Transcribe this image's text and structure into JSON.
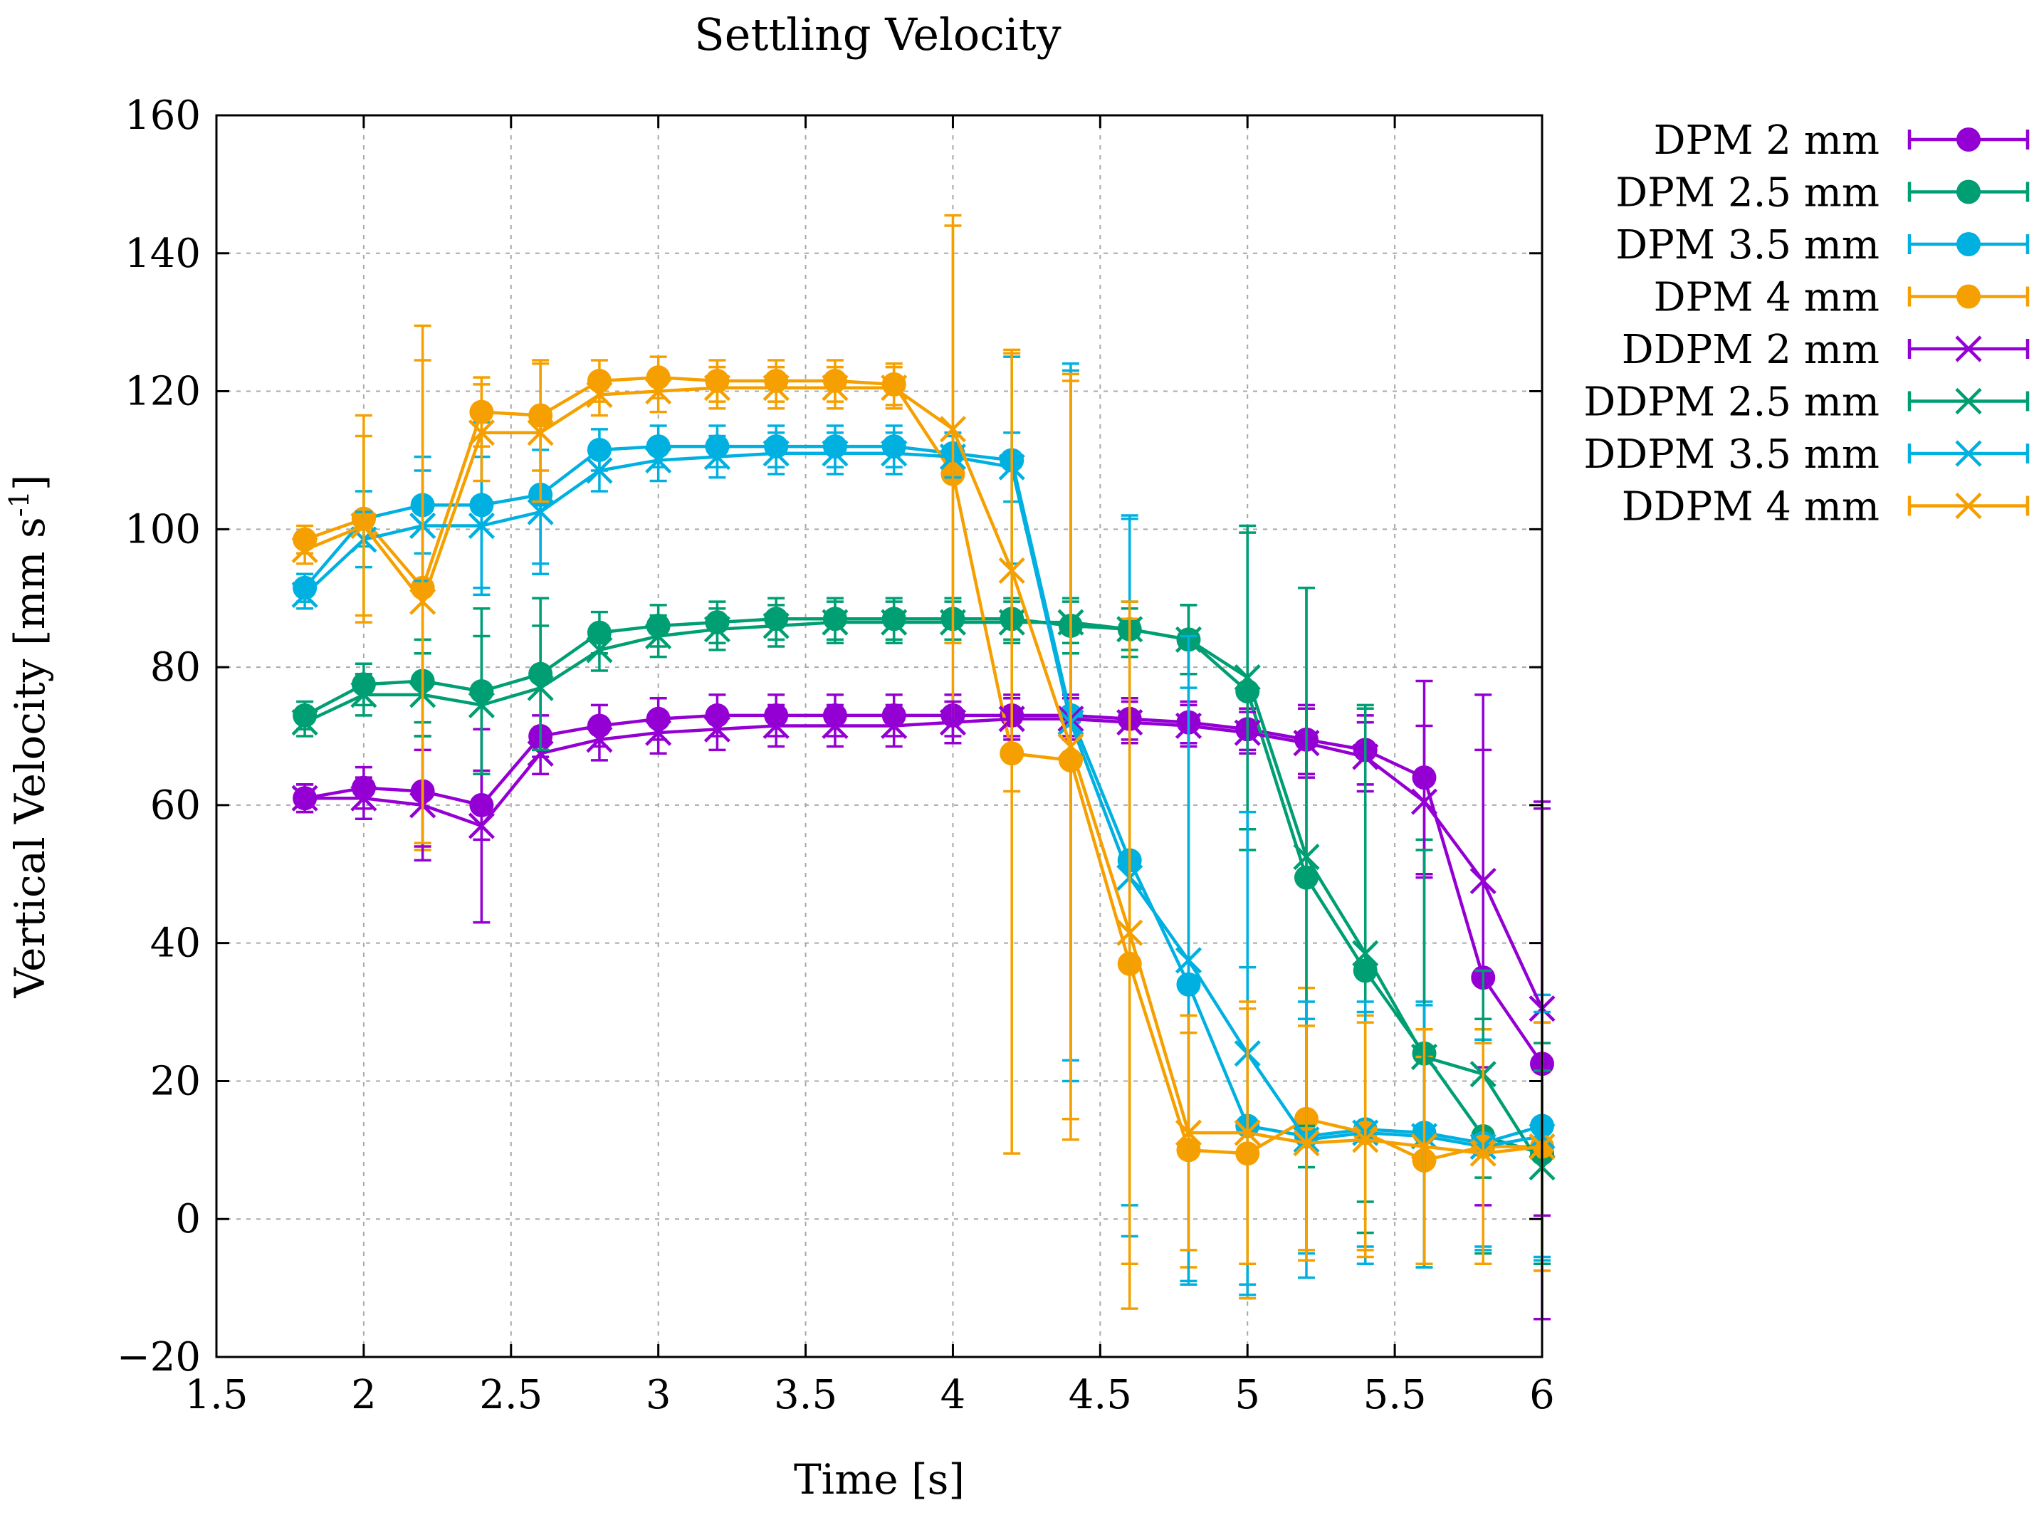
{
  "chart_data": {
    "type": "line",
    "title": "Settling Velocity",
    "xlabel": "Time [s]",
    "ylabel": "Vertical Velocity [mm s",
    "ylabel_sup": "-1",
    "ylabel_end": "]",
    "xlim": [
      1.5,
      6
    ],
    "ylim": [
      -20,
      160
    ],
    "xticks": [
      "1.5",
      "2",
      "2.5",
      "3",
      "3.5",
      "4",
      "4.5",
      "5",
      "5.5",
      "6"
    ],
    "xtick_values": [
      1.5,
      2,
      2.5,
      3,
      3.5,
      4,
      4.5,
      5,
      5.5,
      6
    ],
    "yticks": [
      "−20",
      "0",
      "20",
      "40",
      "60",
      "80",
      "100",
      "120",
      "140",
      "160"
    ],
    "ytick_values": [
      -20,
      0,
      20,
      40,
      60,
      80,
      100,
      120,
      140,
      160
    ],
    "grid": true,
    "legend_position": "outside-right",
    "x": [
      1.8,
      2.0,
      2.2,
      2.4,
      2.6,
      2.8,
      3.0,
      3.2,
      3.4,
      3.6,
      3.8,
      4.0,
      4.2,
      4.4,
      4.6,
      4.8,
      5.0,
      5.2,
      5.4,
      5.6,
      5.8,
      6.0
    ],
    "series": [
      {
        "name": "DPM 2 mm",
        "color": "#9400d3",
        "marker": "circle",
        "values": [
          61,
          62.5,
          62,
          60,
          70,
          71.5,
          72.5,
          73,
          73,
          73,
          73,
          73,
          73,
          73,
          72.5,
          72,
          71,
          69.5,
          68,
          64,
          35,
          22.5
        ],
        "errors": [
          2,
          3,
          8,
          5,
          3,
          3,
          3,
          3,
          3,
          3,
          3,
          3,
          3,
          3,
          3,
          3,
          3,
          5,
          5,
          14,
          33,
          37
        ]
      },
      {
        "name": "DPM 2.5 mm",
        "color": "#009e73",
        "marker": "circle",
        "values": [
          73,
          77.5,
          78,
          76.5,
          79,
          85,
          86,
          86.5,
          87,
          87,
          87,
          87,
          87,
          86,
          85.5,
          84,
          76.5,
          49.5,
          36,
          24,
          12,
          9.5
        ],
        "errors": [
          2,
          3,
          6,
          12,
          11,
          3,
          3,
          3,
          3,
          3,
          3,
          3,
          3,
          4,
          4,
          5,
          23,
          42,
          38,
          31,
          17,
          16
        ]
      },
      {
        "name": "DPM 3.5 mm",
        "color": "#00b0e0",
        "marker": "circle",
        "values": [
          91.5,
          101.5,
          103.5,
          103.5,
          105,
          111.5,
          112,
          112,
          112,
          112,
          112,
          111,
          110,
          73,
          52,
          34,
          13.5,
          12,
          13,
          12.5,
          11,
          13.5
        ],
        "errors": [
          2,
          4,
          7,
          12,
          10,
          3,
          3,
          3,
          3,
          3,
          3,
          3,
          15,
          50,
          50,
          43,
          23,
          17,
          17,
          19,
          15,
          19
        ]
      },
      {
        "name": "DPM 4 mm",
        "color": "#f5a000",
        "marker": "circle",
        "values": [
          98.5,
          101.5,
          91.5,
          117,
          116.5,
          121.5,
          122,
          121.5,
          121.5,
          121.5,
          121,
          108,
          67.5,
          66.5,
          37,
          10,
          9.5,
          14.5,
          12.5,
          8.5,
          10.5,
          10.5
        ],
        "errors": [
          2,
          15,
          38,
          5,
          8,
          3,
          3,
          3,
          3,
          3,
          3,
          36,
          58,
          55,
          50,
          17,
          21,
          19,
          17,
          15,
          17,
          18
        ]
      },
      {
        "name": "DDPM 2 mm",
        "color": "#9400d3",
        "marker": "x",
        "values": [
          61,
          61,
          60,
          57,
          67.5,
          69.5,
          70.5,
          71,
          71.5,
          71.5,
          71.5,
          72,
          72.5,
          72.5,
          72,
          71.5,
          70.5,
          69,
          67,
          60.5,
          49,
          30.5
        ],
        "errors": [
          2,
          3,
          8,
          14,
          3,
          3,
          3,
          3,
          3,
          3,
          3,
          3,
          3,
          3,
          3,
          3,
          3,
          5,
          5,
          11,
          27,
          30
        ]
      },
      {
        "name": "DDPM 2.5 mm",
        "color": "#009e73",
        "marker": "x",
        "values": [
          72,
          76,
          76,
          74.5,
          77,
          82.5,
          84.5,
          85.5,
          86,
          86.5,
          86.5,
          86.5,
          86.5,
          86.5,
          85.5,
          84,
          78.5,
          52.5,
          38.5,
          23.5,
          21,
          7.5
        ],
        "errors": [
          2,
          3,
          6,
          10,
          9,
          3,
          3,
          3,
          3,
          3,
          3,
          3,
          3,
          3,
          3,
          5,
          22,
          39,
          36,
          30,
          15,
          14
        ]
      },
      {
        "name": "DDPM 3.5 mm",
        "color": "#00b0e0",
        "marker": "x",
        "values": [
          90.5,
          98.5,
          100.5,
          100.5,
          102.5,
          108.5,
          110,
          110.5,
          111,
          111,
          111,
          110.5,
          109,
          72,
          49.5,
          37.5,
          24,
          11.5,
          12.5,
          12,
          10.5,
          12
        ],
        "errors": [
          2,
          4,
          8,
          10,
          9,
          3,
          3,
          3,
          3,
          3,
          3,
          3,
          5,
          52,
          52,
          47,
          35,
          20,
          19,
          19,
          15,
          18
        ]
      },
      {
        "name": "DDPM 4 mm",
        "color": "#f5a000",
        "marker": "x",
        "values": [
          97,
          100.5,
          89.5,
          114,
          114,
          119.5,
          120,
          120.5,
          120.5,
          120.5,
          120.5,
          114.5,
          94,
          68.5,
          41.5,
          12.5,
          12.5,
          11,
          11.5,
          10.5,
          9.5,
          10.5
        ],
        "errors": [
          2,
          13,
          35,
          7,
          10,
          3,
          3,
          3,
          3,
          3,
          3,
          31,
          32,
          54,
          48,
          17,
          19,
          17,
          17,
          17,
          16,
          18
        ]
      }
    ]
  }
}
